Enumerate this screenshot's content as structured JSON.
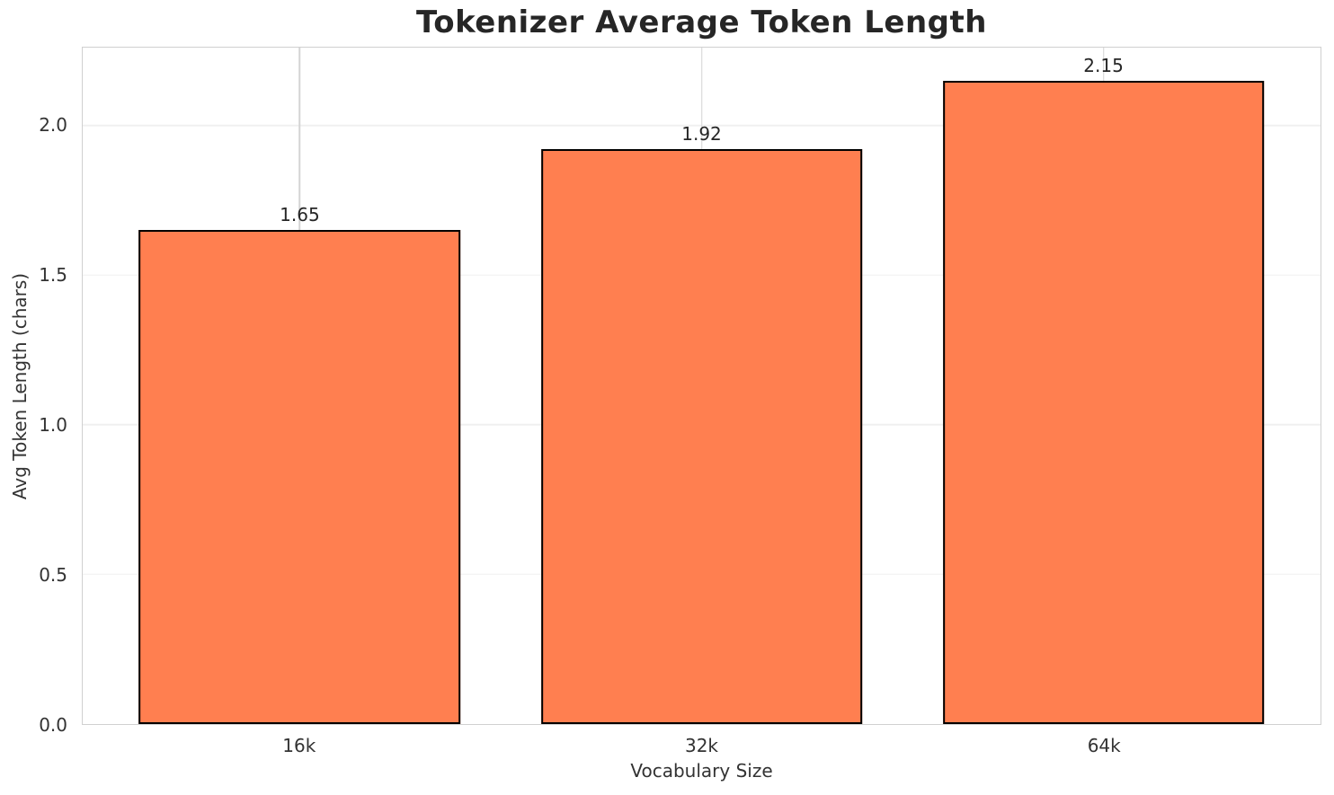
{
  "chart_data": {
    "type": "bar",
    "title": "Tokenizer Average Token Length",
    "categories": [
      "16k",
      "32k",
      "64k"
    ],
    "values": [
      1.65,
      1.92,
      2.15
    ],
    "value_labels": [
      "1.65",
      "1.92",
      "2.15"
    ],
    "xlabel": "Vocabulary Size",
    "ylabel": "Avg Token Length (chars)",
    "ylim": [
      0,
      2.26
    ],
    "xlim": [
      -0.54,
      2.54
    ],
    "yticks": [
      0.0,
      0.5,
      1.0,
      1.5,
      2.0
    ],
    "ytick_labels": [
      "0.0",
      "0.5",
      "1.0",
      "1.5",
      "2.0"
    ],
    "bar_width": 0.8,
    "grid": true,
    "legend": false,
    "colors": {
      "bar_fill": "#FF7F50",
      "bar_edge": "#000000",
      "h_grid": "#f0f0f0",
      "v_grid": "#d4d4d4",
      "spine": "#d0d0d0",
      "title_text": "#262626",
      "tick_text": "#333333"
    }
  }
}
